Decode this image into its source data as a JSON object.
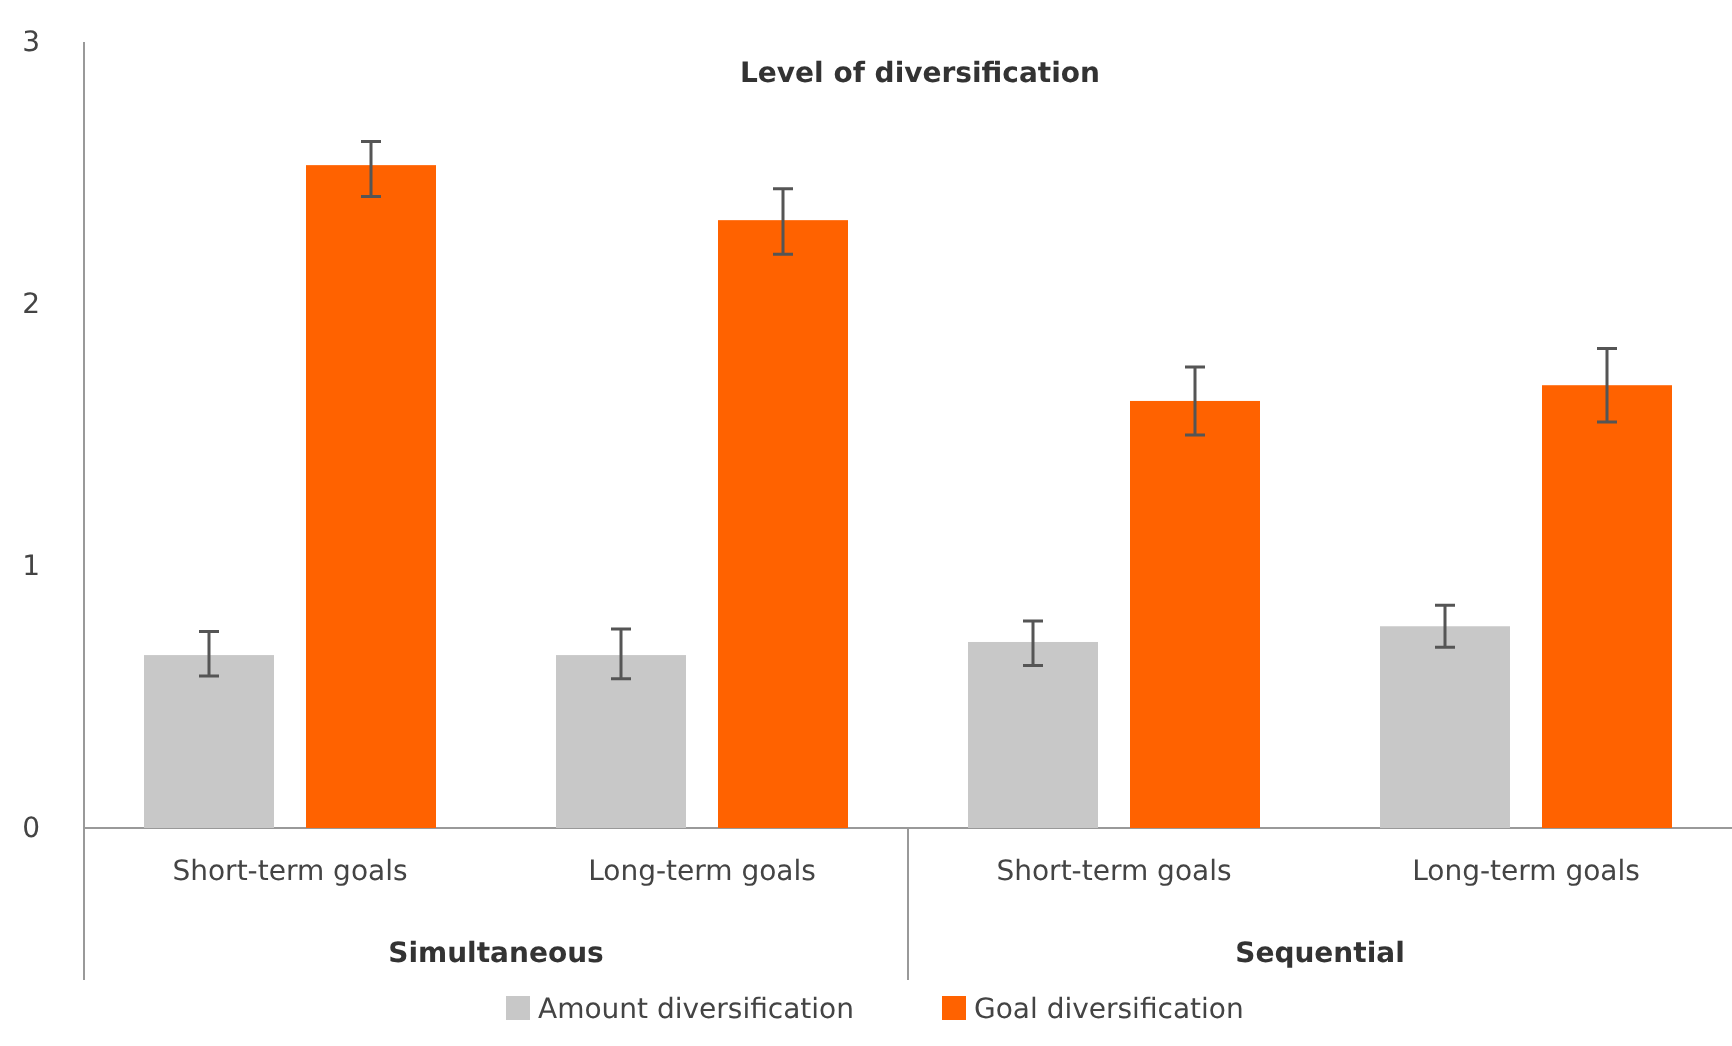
{
  "chart_data": {
    "type": "bar",
    "title": "Level of diversification",
    "categories": [
      "Short-term goals",
      "Long-term goals",
      "Short-term goals",
      "Long-term goals"
    ],
    "series": [
      {
        "name": "Amount diversification",
        "color": "#c8c8c8",
        "values": [
          0.66,
          0.66,
          0.71,
          0.77
        ],
        "errors": [
          [
            0.58,
            0.75
          ],
          [
            0.57,
            0.76
          ],
          [
            0.62,
            0.79
          ],
          [
            0.69,
            0.85
          ]
        ]
      },
      {
        "name": "Goal diversification",
        "color": "#ff6200",
        "values": [
          2.53,
          2.32,
          1.63,
          1.69
        ],
        "errors": [
          [
            2.41,
            2.62
          ],
          [
            2.19,
            2.44
          ],
          [
            1.5,
            1.76
          ],
          [
            1.55,
            1.83
          ]
        ]
      }
    ],
    "annotations": [
      "Simultaneous",
      "Sequential"
    ],
    "ylim": [
      0,
      3
    ],
    "yticks": [
      0,
      1,
      2,
      3
    ],
    "grid": false,
    "legend": "bottom"
  }
}
